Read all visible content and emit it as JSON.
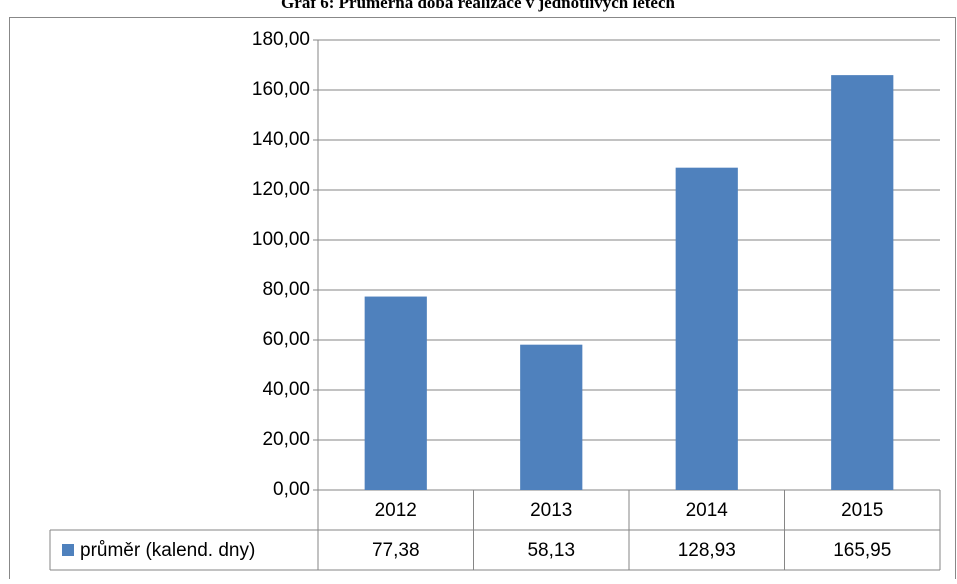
{
  "chart_data": {
    "type": "bar",
    "title": "Graf 6: Průměrná doba realizace v jednotlivých letech",
    "categories": [
      "2012",
      "2013",
      "2014",
      "2015"
    ],
    "series": [
      {
        "name": "průměr (kalend. dny)",
        "color": "#4f81bd",
        "values": [
          77.38,
          58.13,
          128.93,
          165.95
        ],
        "value_labels": [
          "77,38",
          "58,13",
          "128,93",
          "165,95"
        ]
      }
    ],
    "ylim": [
      0,
      180
    ],
    "yticks": [
      {
        "value": 0,
        "label": "0,00"
      },
      {
        "value": 20,
        "label": "20,00"
      },
      {
        "value": 40,
        "label": "40,00"
      },
      {
        "value": 60,
        "label": "60,00"
      },
      {
        "value": 80,
        "label": "80,00"
      },
      {
        "value": 100,
        "label": "100,00"
      },
      {
        "value": 120,
        "label": "120,00"
      },
      {
        "value": 140,
        "label": "140,00"
      },
      {
        "value": 160,
        "label": "160,00"
      },
      {
        "value": 180,
        "label": "180,00"
      }
    ],
    "grid": true
  }
}
